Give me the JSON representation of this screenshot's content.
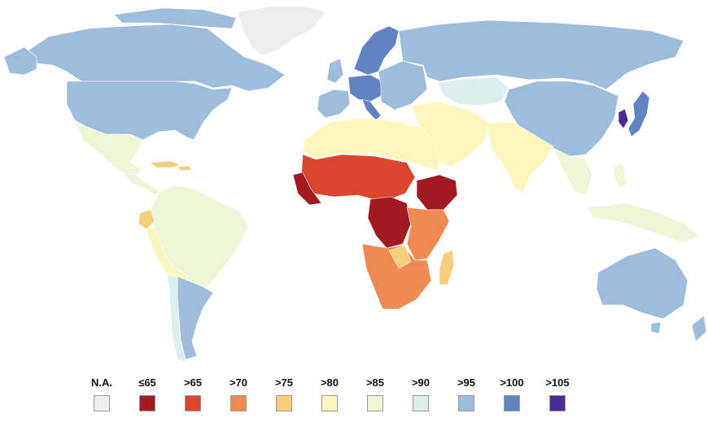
{
  "legend": {
    "items": [
      {
        "label": "N.A.",
        "color": "#ededed"
      },
      {
        "label": "≤65",
        "color": "#a11a22"
      },
      {
        "label": ">65",
        "color": "#d9452d"
      },
      {
        "label": ">70",
        "color": "#ee8a52"
      },
      {
        "label": ">75",
        "color": "#f8cd7c"
      },
      {
        "label": ">80",
        "color": "#fff6bd"
      },
      {
        "label": ">85",
        "color": "#eef6d8"
      },
      {
        "label": ">90",
        "color": "#dcefee"
      },
      {
        "label": ">95",
        "color": "#9ebcdb"
      },
      {
        "label": ">100",
        "color": "#6283c3"
      },
      {
        "label": ">105",
        "color": "#4b2a91"
      }
    ]
  },
  "regions": [
    {
      "name": "greenland",
      "category": "N.A."
    },
    {
      "name": "canada",
      "category": ">95"
    },
    {
      "name": "usa",
      "category": ">95"
    },
    {
      "name": "mexico",
      "category": ">85"
    },
    {
      "name": "central-america",
      "category": ">85"
    },
    {
      "name": "caribbean",
      "category": ">75"
    },
    {
      "name": "south-america",
      "category": ">85"
    },
    {
      "name": "ecuador",
      "category": ">75"
    },
    {
      "name": "peru",
      "category": ">80"
    },
    {
      "name": "argentina",
      "category": ">95"
    },
    {
      "name": "chile",
      "category": ">90"
    },
    {
      "name": "western-europe",
      "category": ">95"
    },
    {
      "name": "central-europe",
      "category": ">100"
    },
    {
      "name": "scandinavia",
      "category": ">100"
    },
    {
      "name": "eastern-europe",
      "category": ">95"
    },
    {
      "name": "russia",
      "category": ">95"
    },
    {
      "name": "kazakhstan",
      "category": ">90"
    },
    {
      "name": "china",
      "category": ">95"
    },
    {
      "name": "korea",
      "category": ">105"
    },
    {
      "name": "japan",
      "category": ">100"
    },
    {
      "name": "middle-east",
      "category": ">80"
    },
    {
      "name": "north-africa",
      "category": ">80"
    },
    {
      "name": "south-asia",
      "category": ">80"
    },
    {
      "name": "southeast-asia",
      "category": ">85"
    },
    {
      "name": "indonesia",
      "category": ">85"
    },
    {
      "name": "australia",
      "category": ">95"
    },
    {
      "name": "sahel",
      "category": ">65"
    },
    {
      "name": "west-africa",
      "category": "≤65"
    },
    {
      "name": "central-africa",
      "category": "≤65"
    },
    {
      "name": "ethiopia",
      "category": "≤65"
    },
    {
      "name": "east-africa",
      "category": ">70"
    },
    {
      "name": "southern-africa",
      "category": ">70"
    },
    {
      "name": "madagascar",
      "category": ">75"
    }
  ]
}
